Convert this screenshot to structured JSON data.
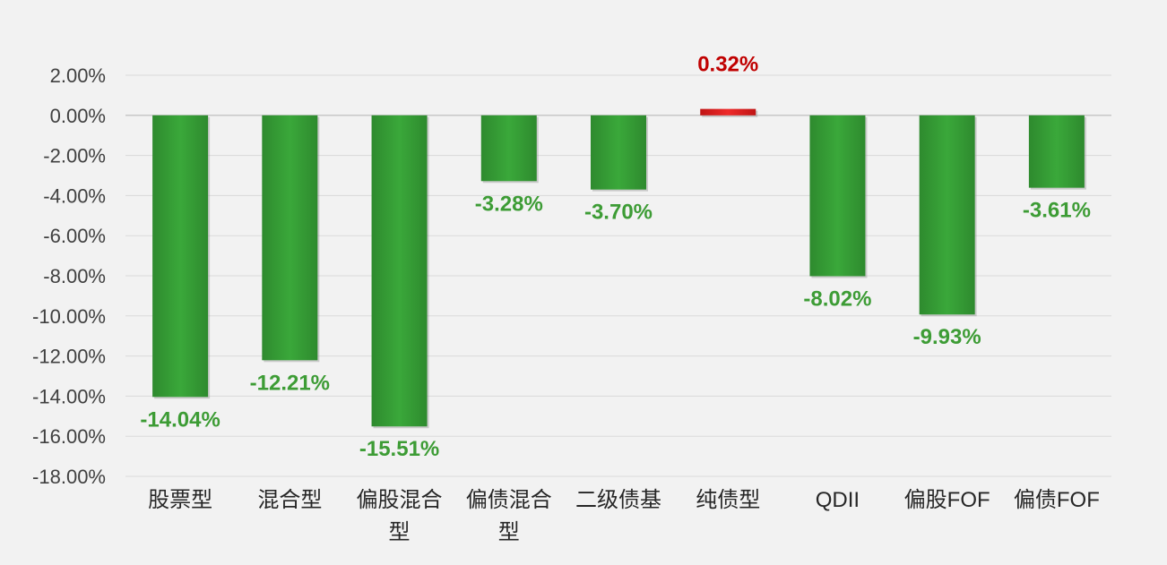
{
  "chart_data": {
    "type": "bar",
    "categories": [
      "股票型",
      "混合型",
      "偏股混合型",
      "偏债混合型",
      "二级债基",
      "纯债型",
      "QDII",
      "偏股FOF",
      "偏债FOF"
    ],
    "x_tick_lines": [
      [
        "股票型"
      ],
      [
        "混合型"
      ],
      [
        "偏股混合",
        "型"
      ],
      [
        "偏债混合",
        "型"
      ],
      [
        "二级债基"
      ],
      [
        "纯债型"
      ],
      [
        "QDII"
      ],
      [
        "偏股FOF"
      ],
      [
        "偏债FOF"
      ]
    ],
    "values": [
      -14.04,
      -12.21,
      -15.51,
      -3.28,
      -3.7,
      0.32,
      -8.02,
      -9.93,
      -3.61
    ],
    "data_labels": [
      "-14.04%",
      "-12.21%",
      "-15.51%",
      "-3.28%",
      "-3.70%",
      "0.32%",
      "-8.02%",
      "-9.93%",
      "-3.61%"
    ],
    "title": "",
    "xlabel": "",
    "ylabel": "",
    "ylim": [
      -18,
      2
    ],
    "y_ticks": [
      2,
      0,
      -2,
      -4,
      -6,
      -8,
      -10,
      -12,
      -14,
      -16,
      -18
    ],
    "y_tick_labels": [
      "2.00%",
      "0.00%",
      "-2.00%",
      "-4.00%",
      "-6.00%",
      "-8.00%",
      "-10.00%",
      "-12.00%",
      "-14.00%",
      "-16.00%",
      "-18.00%"
    ],
    "grid": true,
    "legend": "none",
    "colors": {
      "negative": "#3aa33a",
      "positive": "#e01e1e",
      "negative_label": "#3d9c35",
      "positive_label": "#c00000"
    }
  }
}
